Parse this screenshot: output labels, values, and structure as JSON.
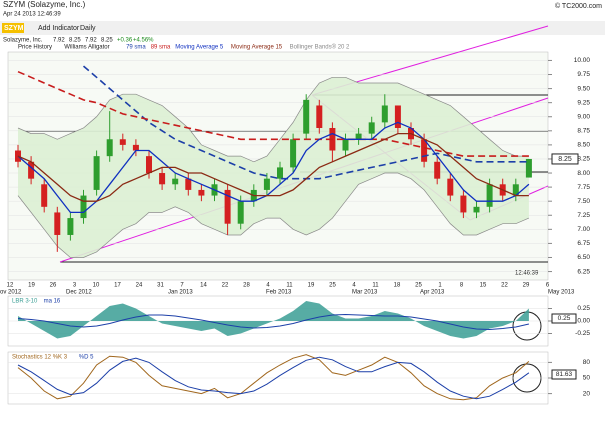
{
  "header": {
    "title": "SZYM (Solazyme, Inc.)",
    "timestamp": "Apr 24 2013 12:46:39",
    "copyright": "© TC2000.com",
    "symbol": "SZYM",
    "add_indicator": "Add Indicator",
    "period": "Daily",
    "quote": [
      "Solazyme, Inc.",
      "7.92",
      "8.25",
      "7.92",
      "8.25",
      "+0.36",
      "+4.56%"
    ],
    "time_label": "12:46:39"
  },
  "chart_data": [
    {
      "type": "candlestick",
      "legend": [
        "Price History",
        "Williams Alligator"
      ],
      "ylim": [
        6.1,
        10.15
      ],
      "yticks": [
        {
          "value": 6.25,
          "label": "6.25"
        },
        {
          "value": 6.5,
          "label": "6.50"
        },
        {
          "value": 6.75,
          "label": "6.75"
        },
        {
          "value": 7,
          "label": "7.00"
        },
        {
          "value": 7.25,
          "label": "7.25"
        },
        {
          "value": 7.5,
          "label": "7.50"
        },
        {
          "value": 7.75,
          "label": "7.75"
        },
        {
          "value": 8,
          "label": "8.00"
        },
        {
          "value": 8.25,
          "label": "8.25"
        },
        {
          "value": 8.5,
          "label": "8.50"
        },
        {
          "value": 8.75,
          "label": "8.75"
        },
        {
          "value": 9,
          "label": "9.00"
        },
        {
          "value": 9.25,
          "label": "9.25"
        },
        {
          "value": 9.5,
          "label": "9.50"
        },
        {
          "value": 9.75,
          "label": "9.75"
        },
        {
          "value": 10,
          "label": "10.00"
        }
      ],
      "x_labels": [
        "12",
        "19",
        "26",
        "3",
        "10",
        "17",
        "24",
        "31",
        "7",
        "14",
        "22",
        "28",
        "4",
        "11",
        "19",
        "25",
        "4",
        "11",
        "18",
        "25",
        "1",
        "8",
        "15",
        "22",
        "29",
        "6"
      ],
      "months": [
        "ov 2012",
        "Dec 2012",
        "Jan 2013",
        "Feb 2013",
        "Mar 2013",
        "Apr 2013",
        "May 2013"
      ],
      "open": [
        8.4,
        8.2,
        7.8,
        7.3,
        6.9,
        7.2,
        7.7,
        8.3,
        8.6,
        8.5,
        8.3,
        8.0,
        7.8,
        7.9,
        7.7,
        7.6,
        7.7,
        7.1,
        7.5,
        7.7,
        7.9,
        8.1,
        8.7,
        9.2,
        8.8,
        8.4,
        8.6,
        8.7,
        8.9,
        9.2,
        8.8,
        8.6,
        8.2,
        7.9,
        7.6,
        7.3,
        7.4,
        7.8,
        7.6,
        7.92
      ],
      "high": [
        8.5,
        8.3,
        7.9,
        7.4,
        7.3,
        7.7,
        8.4,
        9.1,
        8.7,
        8.6,
        8.4,
        8.1,
        8.0,
        8.0,
        7.8,
        7.9,
        7.8,
        7.6,
        7.8,
        8.0,
        8.2,
        8.7,
        9.4,
        9.3,
        8.9,
        8.7,
        8.8,
        9.0,
        9.4,
        9.2,
        8.9,
        8.7,
        8.3,
        8.0,
        7.7,
        7.5,
        7.9,
        7.9,
        7.9,
        8.25
      ],
      "low": [
        8.1,
        7.8,
        7.3,
        6.6,
        6.8,
        7.1,
        7.6,
        8.2,
        8.4,
        8.3,
        7.9,
        7.7,
        7.7,
        7.6,
        7.5,
        7.5,
        6.9,
        7.0,
        7.4,
        7.6,
        7.8,
        8.0,
        8.6,
        8.7,
        8.2,
        8.3,
        8.5,
        8.6,
        8.8,
        8.7,
        8.5,
        8.1,
        7.8,
        7.5,
        7.2,
        7.2,
        7.3,
        7.5,
        7.5,
        7.92
      ],
      "close": [
        8.2,
        7.9,
        7.4,
        6.9,
        7.2,
        7.6,
        8.3,
        8.6,
        8.5,
        8.4,
        8.0,
        7.8,
        7.9,
        7.7,
        7.6,
        7.8,
        7.1,
        7.5,
        7.7,
        7.9,
        8.1,
        8.6,
        9.3,
        8.8,
        8.4,
        8.6,
        8.7,
        8.9,
        9.2,
        8.8,
        8.6,
        8.2,
        7.9,
        7.6,
        7.3,
        7.4,
        7.8,
        7.6,
        7.8,
        8.25
      ],
      "up_color": "#2e9e2e",
      "down_color": "#d42020",
      "series": [
        {
          "name": "79 sma",
          "color": "#1c3fa8",
          "dash": true,
          "values": [
            null,
            null,
            null,
            null,
            null,
            9.9,
            9.7,
            9.5,
            9.3,
            9.1,
            8.9,
            8.75,
            8.6,
            8.5,
            8.4,
            8.3,
            8.2,
            8.1,
            8.0,
            7.95,
            7.9,
            7.9,
            7.9,
            7.9,
            7.95,
            8.0,
            8.05,
            8.1,
            8.15,
            8.2,
            8.25,
            8.3,
            8.35,
            8.3,
            8.25,
            8.2,
            8.2,
            8.2,
            8.2,
            8.2
          ]
        },
        {
          "name": "89 sma",
          "color": "#c81c1c",
          "dash": true,
          "values": [
            9.8,
            9.7,
            9.6,
            9.5,
            9.4,
            9.3,
            9.25,
            9.15,
            9.05,
            9.0,
            8.95,
            8.9,
            8.85,
            8.8,
            8.75,
            8.7,
            8.65,
            8.6,
            8.6,
            8.6,
            8.6,
            8.6,
            8.6,
            8.6,
            8.6,
            8.6,
            8.6,
            8.6,
            8.6,
            8.55,
            8.5,
            8.45,
            8.4,
            8.35,
            8.3,
            8.3,
            8.3,
            8.3,
            8.3,
            8.3
          ]
        },
        {
          "name": "Moving Average 5",
          "color": "#1030c0",
          "dash": false,
          "values": [
            8.3,
            8.1,
            7.9,
            7.6,
            7.3,
            7.3,
            7.5,
            7.8,
            8.1,
            8.4,
            8.4,
            8.2,
            8.0,
            7.9,
            7.8,
            7.7,
            7.6,
            7.5,
            7.5,
            7.6,
            7.8,
            8.0,
            8.4,
            8.6,
            8.7,
            8.6,
            8.6,
            8.6,
            8.8,
            8.9,
            8.8,
            8.6,
            8.3,
            8.0,
            7.7,
            7.5,
            7.5,
            7.5,
            7.6,
            7.8
          ]
        },
        {
          "name": "Moving Average 15",
          "color": "#8b2a14",
          "dash": false,
          "values": [
            8.3,
            8.2,
            8.0,
            7.8,
            7.6,
            7.5,
            7.5,
            7.6,
            7.8,
            7.9,
            8.0,
            8.1,
            8.1,
            8.0,
            8.0,
            7.9,
            7.8,
            7.7,
            7.6,
            7.6,
            7.6,
            7.7,
            7.9,
            8.1,
            8.2,
            8.3,
            8.4,
            8.5,
            8.6,
            8.7,
            8.7,
            8.6,
            8.5,
            8.3,
            8.1,
            7.9,
            7.8,
            7.7,
            7.6,
            7.6
          ]
        }
      ],
      "bands": {
        "name": "Bollinger Bands® 20 2",
        "color": "#8a8a8a",
        "fill": "#dcefd4",
        "upper": [
          8.8,
          8.7,
          8.7,
          8.6,
          8.7,
          8.8,
          9.0,
          9.3,
          9.4,
          9.4,
          9.3,
          9.2,
          9.0,
          8.8,
          8.5,
          8.4,
          8.3,
          8.3,
          8.2,
          8.3,
          8.6,
          8.9,
          9.3,
          9.6,
          9.7,
          9.7,
          9.6,
          9.6,
          9.6,
          9.6,
          9.5,
          9.4,
          9.3,
          9.2,
          9.0,
          8.8,
          8.6,
          8.4,
          8.3,
          8.3
        ],
        "lower": [
          7.6,
          7.3,
          7.0,
          6.7,
          6.5,
          6.5,
          6.6,
          6.8,
          7.0,
          7.1,
          7.3,
          7.3,
          7.4,
          7.3,
          7.1,
          7.0,
          6.9,
          6.9,
          7.1,
          7.2,
          7.2,
          7.0,
          6.9,
          7.0,
          7.2,
          7.5,
          7.8,
          7.9,
          8.0,
          8.0,
          7.9,
          7.7,
          7.4,
          7.1,
          6.9,
          6.9,
          7.0,
          7.1,
          7.1,
          7.2
        ]
      },
      "readout": "8.25"
    },
    {
      "type": "area",
      "ylim": [
        -0.5,
        0.5
      ],
      "yticks": [
        {
          "value": -0.25,
          "label": "-0.25"
        },
        {
          "value": 0,
          "label": "0.00"
        },
        {
          "value": 0.25,
          "label": "0.25"
        }
      ],
      "readout": "0.25",
      "series": [
        {
          "name": "LBR 3-10",
          "color": "#3a9e94",
          "values": [
            0.1,
            -0.05,
            -0.2,
            -0.35,
            -0.3,
            -0.1,
            0.1,
            0.3,
            0.35,
            0.25,
            0.1,
            -0.05,
            -0.1,
            -0.15,
            -0.2,
            -0.15,
            -0.3,
            -0.25,
            -0.15,
            -0.05,
            0.05,
            0.2,
            0.4,
            0.35,
            0.15,
            0.05,
            0.05,
            0.1,
            0.2,
            0.15,
            0.05,
            -0.1,
            -0.2,
            -0.3,
            -0.35,
            -0.3,
            -0.15,
            -0.1,
            0.0,
            0.25
          ]
        },
        {
          "name": "ma 16",
          "color": "#1c3fa8",
          "values": [
            0.05,
            0.03,
            0.0,
            -0.05,
            -0.1,
            -0.12,
            -0.1,
            -0.05,
            0.02,
            0.08,
            0.12,
            0.12,
            0.1,
            0.06,
            0.02,
            -0.03,
            -0.08,
            -0.12,
            -0.14,
            -0.13,
            -0.1,
            -0.05,
            0.02,
            0.08,
            0.12,
            0.13,
            0.12,
            0.11,
            0.1,
            0.1,
            0.08,
            0.04,
            0.0,
            -0.06,
            -0.12,
            -0.16,
            -0.17,
            -0.15,
            -0.12,
            -0.06
          ]
        }
      ]
    },
    {
      "type": "line",
      "ylim": [
        0,
        100
      ],
      "yticks": [
        20,
        50,
        80
      ],
      "readout": "81.63",
      "series": [
        {
          "name": "Stochastics 12 %K 3",
          "color": "#a0661c",
          "values": [
            70,
            50,
            25,
            10,
            15,
            40,
            75,
            92,
            90,
            80,
            55,
            35,
            30,
            25,
            20,
            30,
            12,
            20,
            40,
            60,
            75,
            88,
            95,
            85,
            60,
            55,
            65,
            75,
            90,
            80,
            60,
            35,
            20,
            10,
            8,
            12,
            35,
            50,
            60,
            82
          ]
        },
        {
          "name": "%D 5",
          "color": "#1c3fa8",
          "values": [
            75,
            62,
            45,
            28,
            18,
            22,
            40,
            65,
            82,
            88,
            80,
            62,
            45,
            33,
            27,
            25,
            22,
            20,
            25,
            38,
            55,
            70,
            84,
            90,
            85,
            72,
            62,
            62,
            72,
            80,
            78,
            62,
            42,
            25,
            15,
            10,
            15,
            28,
            42,
            60
          ]
        }
      ]
    }
  ]
}
